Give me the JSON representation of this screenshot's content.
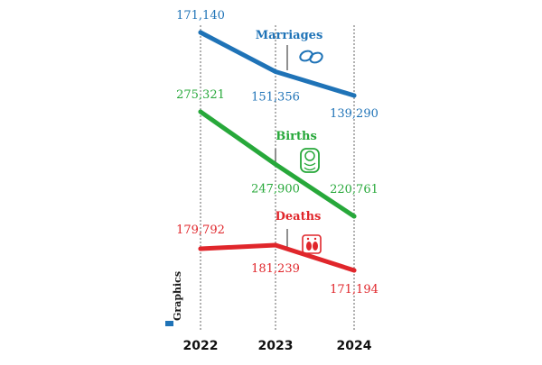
{
  "chart_data": {
    "type": "line",
    "x": [
      "2022",
      "2023",
      "2024"
    ],
    "series": [
      {
        "name": "Marriages",
        "values": [
          171140,
          151356,
          139290
        ],
        "labels": [
          "171,140",
          "151,356",
          "139,290"
        ],
        "color": "#1f73b7",
        "icon": "rings-icon"
      },
      {
        "name": "Births",
        "values": [
          275321,
          247900,
          220761
        ],
        "labels": [
          "275,321",
          "247,900",
          "220,761"
        ],
        "color": "#27a83a",
        "icon": "baby-icon"
      },
      {
        "name": "Deaths",
        "values": [
          179792,
          181239,
          171194
        ],
        "labels": [
          "179,792",
          "181,239",
          "171,194"
        ],
        "color": "#e0262b",
        "icon": "feet-icon"
      }
    ],
    "grid": "vertical-dashed",
    "credit": "Graphics"
  }
}
